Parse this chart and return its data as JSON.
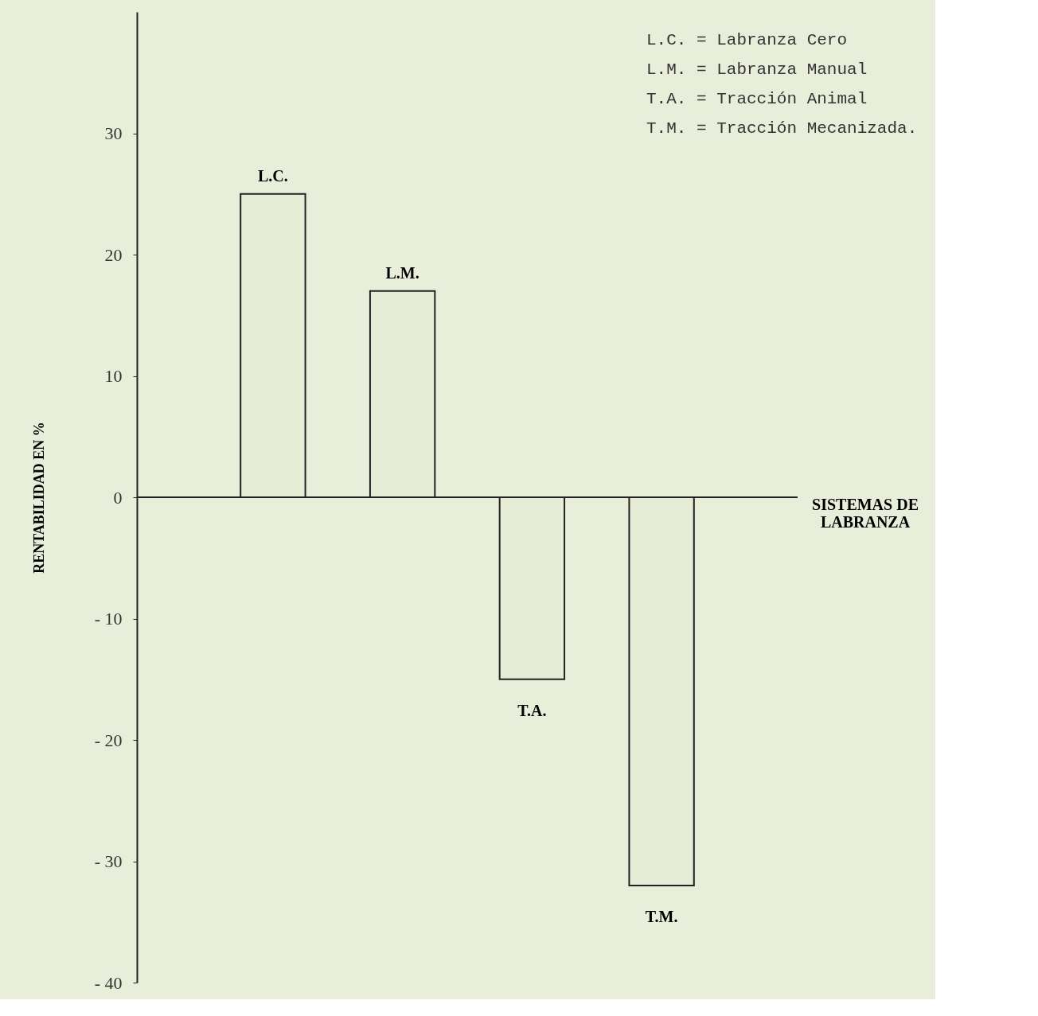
{
  "chart_data": {
    "type": "bar",
    "categories": [
      "L.C.",
      "L.M.",
      "T.A.",
      "T.M."
    ],
    "values": [
      25,
      17,
      -15,
      -32
    ],
    "color": "#e6ecd6",
    "xlabel": "SISTEMAS DE LABRANZA",
    "ylabel": "RENTABILIDAD EN %",
    "ylim": [
      -40,
      40
    ],
    "yticks": [
      {
        "value": -40,
        "label": "- 40"
      },
      {
        "value": -30,
        "label": "- 30"
      },
      {
        "value": -20,
        "label": "- 20"
      },
      {
        "value": -10,
        "label": "- 10"
      },
      0,
      10,
      20,
      30
    ],
    "annotations": [
      "L.C. =  Labranza Cero",
      "L.M. =  Labranza Manual",
      "T.A. =  Tracción Animal",
      "T.M. =  Tracción Mecanizada."
    ],
    "ref_lines": [
      {
        "axis": "y",
        "value": 0,
        "color": "#222222"
      }
    ],
    "grid": false
  }
}
